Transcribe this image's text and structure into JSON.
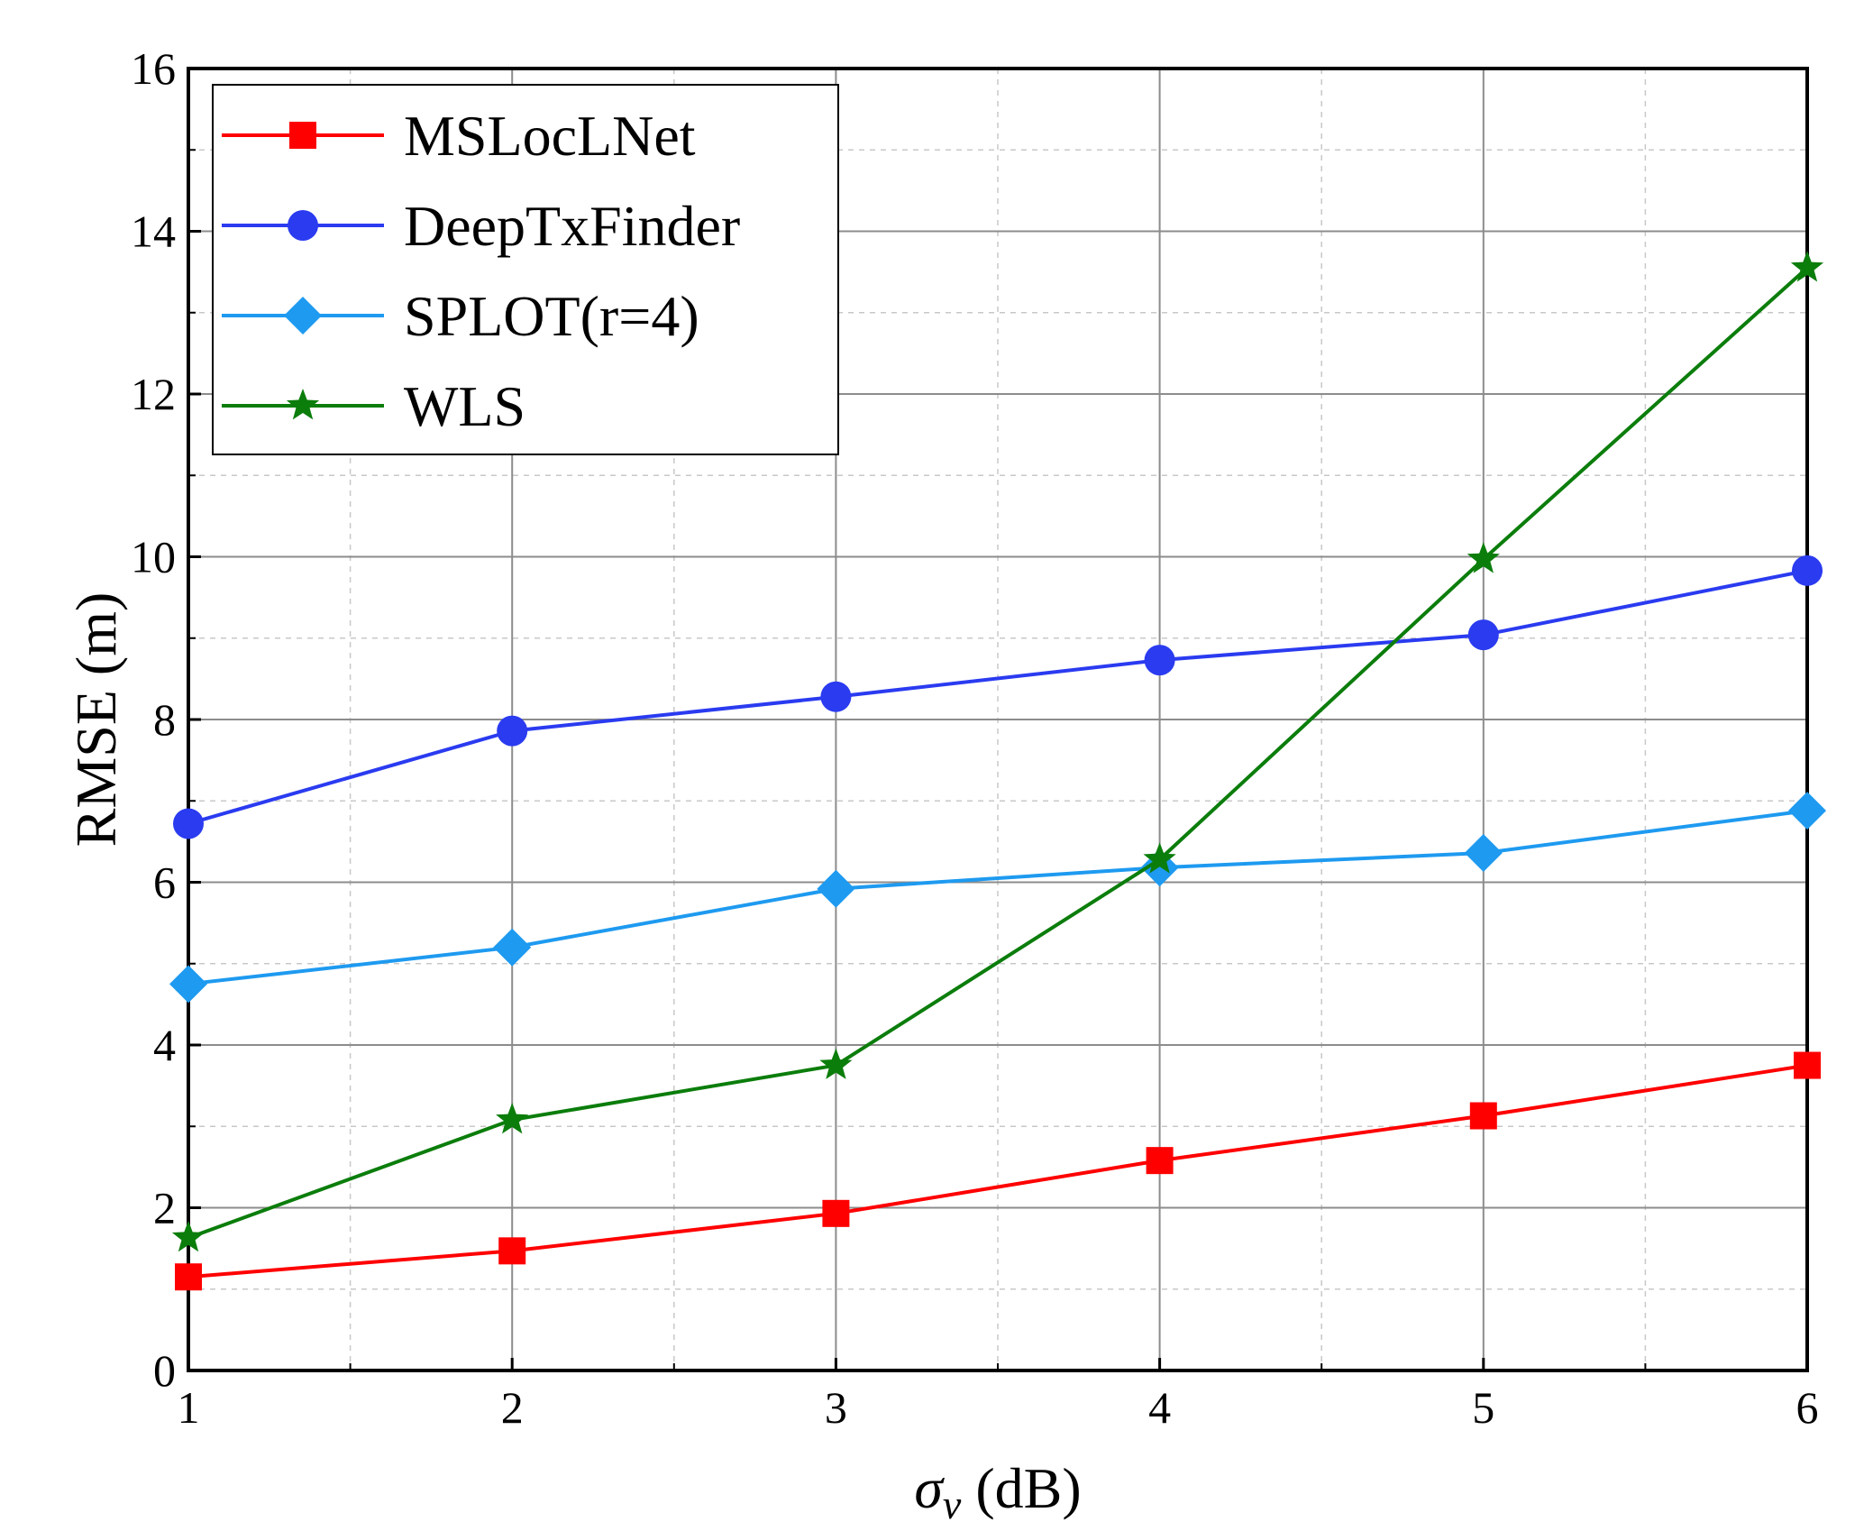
{
  "chart_data": {
    "type": "line",
    "title": "",
    "xlabel_symbol": "σ",
    "xlabel_subscript": "v",
    "xlabel_unit": " (dB)",
    "ylabel": "RMSE (m)",
    "x": [
      1,
      2,
      3,
      4,
      5,
      6
    ],
    "xlim": [
      1,
      6
    ],
    "ylim": [
      0,
      16
    ],
    "xticks": [
      "1",
      "2",
      "3",
      "4",
      "5",
      "6"
    ],
    "yticks": [
      "0",
      "2",
      "4",
      "6",
      "8",
      "10",
      "12",
      "14",
      "16"
    ],
    "grid": true,
    "legend_position": "top-left",
    "series": [
      {
        "name": "MSLocLNet",
        "color": "#ff0000",
        "marker": "square",
        "values": [
          1.15,
          1.47,
          1.93,
          2.58,
          3.13,
          3.75
        ]
      },
      {
        "name": "DeepTxFinder",
        "color": "#2a3bf0",
        "marker": "circle",
        "values": [
          6.72,
          7.86,
          8.28,
          8.73,
          9.04,
          9.83
        ]
      },
      {
        "name": "SPLOT(r=4)",
        "color": "#1e9af0",
        "marker": "diamond",
        "values": [
          4.75,
          5.2,
          5.92,
          6.18,
          6.36,
          6.88
        ]
      },
      {
        "name": "WLS",
        "color": "#0b7d0b",
        "marker": "star",
        "values": [
          1.63,
          3.08,
          3.75,
          6.28,
          9.97,
          13.55
        ]
      }
    ]
  }
}
